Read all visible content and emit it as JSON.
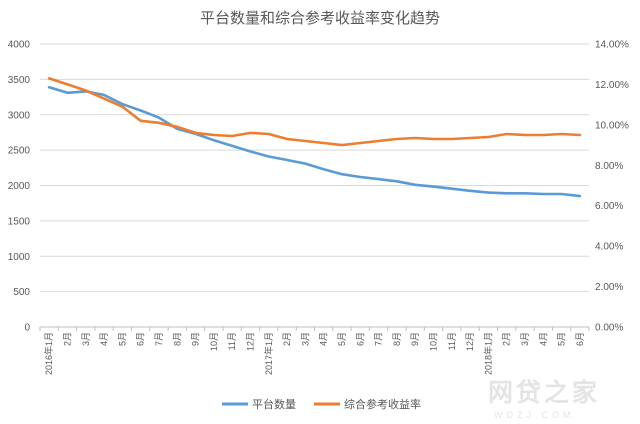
{
  "chart_data": {
    "type": "line",
    "title": "平台数量和综合参考收益率变化趋势",
    "categories": [
      "2016年1月",
      "2月",
      "3月",
      "4月",
      "5月",
      "6月",
      "7月",
      "8月",
      "9月",
      "10月",
      "11月",
      "12月",
      "2017年1月",
      "2月",
      "3月",
      "4月",
      "5月",
      "6月",
      "7月",
      "8月",
      "9月",
      "10月",
      "11月",
      "12月",
      "2018年1月",
      "2月",
      "3月",
      "4月",
      "5月",
      "6月"
    ],
    "y_left": {
      "ticks": [
        "0",
        "500",
        "1000",
        "1500",
        "2000",
        "2500",
        "3000",
        "3500",
        "4000"
      ],
      "range": [
        0,
        4000
      ]
    },
    "y_right": {
      "ticks": [
        "0.00%",
        "2.00%",
        "4.00%",
        "6.00%",
        "8.00%",
        "10.00%",
        "12.00%",
        "14.00%"
      ],
      "range": [
        0,
        14
      ]
    },
    "grid": true,
    "legend_position": "bottom",
    "series": [
      {
        "name": "平台数量",
        "axis": "left",
        "color": "#5b9bd5",
        "values": [
          3390,
          3310,
          3330,
          3280,
          3150,
          3060,
          2960,
          2800,
          2730,
          2640,
          2560,
          2480,
          2410,
          2360,
          2310,
          2230,
          2160,
          2120,
          2090,
          2060,
          2010,
          1985,
          1955,
          1925,
          1900,
          1890,
          1890,
          1880,
          1880,
          1850
        ]
      },
      {
        "name": "综合参考收益率",
        "axis": "right",
        "color": "#ed7d31",
        "values": [
          12.3,
          12.0,
          11.7,
          11.3,
          10.9,
          10.2,
          10.1,
          9.9,
          9.6,
          9.5,
          9.45,
          9.6,
          9.55,
          9.3,
          9.2,
          9.1,
          9.0,
          9.1,
          9.2,
          9.3,
          9.35,
          9.3,
          9.3,
          9.35,
          9.4,
          9.55,
          9.5,
          9.5,
          9.55,
          9.5
        ]
      }
    ]
  },
  "watermark": {
    "main": "网贷之家",
    "sub": "WDZJ.COM"
  }
}
